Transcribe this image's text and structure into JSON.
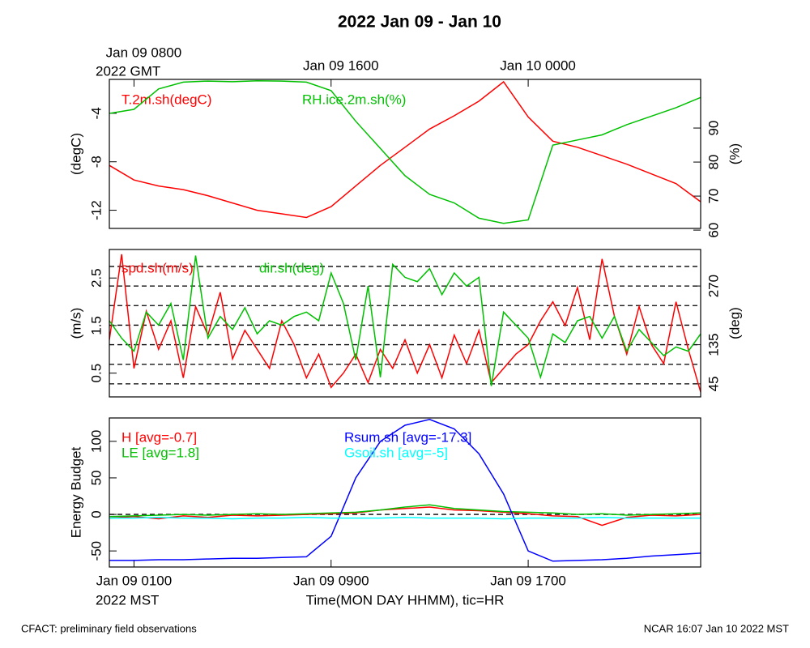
{
  "title": "2022 Jan 09 - Jan 10",
  "footer_left": "CFACT: preliminary field observations",
  "footer_right": "NCAR 16:07 Jan 10 2022 MST",
  "chart_data": [
    {
      "type": "line",
      "ylabel": "(degC)",
      "y2label": "(%)",
      "x": [
        0,
        1,
        2,
        3,
        4,
        5,
        6,
        7,
        8,
        9,
        10,
        11,
        12,
        13,
        14,
        15,
        16,
        17,
        18,
        19,
        20,
        21,
        22,
        23,
        24
      ],
      "xlim": [
        0,
        24
      ],
      "x2ticks": [
        {
          "value": 1,
          "label": "Jan 09 0800"
        },
        {
          "value": 9,
          "label": "Jan 09 1600"
        },
        {
          "value": 17,
          "label": "Jan 10 0000"
        }
      ],
      "x2_note": "2022 GMT",
      "ylim": [
        -13.5,
        -1.2
      ],
      "yticks": [
        -12,
        -8,
        -4
      ],
      "y2lim": [
        60.5,
        104.3
      ],
      "y2ticks": [
        60,
        70,
        80,
        90
      ],
      "series": [
        {
          "name": "T.2m.sh(degC)",
          "color": "#ff0000",
          "values": [
            -8.3,
            -9.5,
            -10.0,
            -10.3,
            -10.8,
            -11.4,
            -12.0,
            -12.3,
            -12.6,
            -11.7,
            -10.0,
            -8.3,
            -6.8,
            -5.3,
            -4.2,
            -3.0,
            -1.4,
            -4.3,
            -6.3,
            -6.8,
            -7.5,
            -8.2,
            -9.0,
            -9.8,
            -11.3
          ]
        },
        {
          "name": "RH.ice.2m.sh(%)",
          "color": "#00c000",
          "axis": "y2",
          "values": [
            94.3,
            95.5,
            101.5,
            103.5,
            103.8,
            103.6,
            103.9,
            103.8,
            103.5,
            101,
            92,
            84,
            76,
            70.5,
            68,
            63.5,
            62,
            63,
            85,
            86.5,
            88,
            91,
            93.5,
            96,
            99
          ]
        }
      ]
    },
    {
      "type": "line",
      "ylabel": "(m/s)",
      "y2label": "(deg)",
      "x": [
        0,
        0.5,
        1,
        1.5,
        2,
        2.5,
        3,
        3.5,
        4,
        4.5,
        5,
        5.5,
        6,
        6.5,
        7,
        7.5,
        8,
        8.5,
        9,
        9.5,
        10,
        10.5,
        11,
        11.5,
        12,
        12.5,
        13,
        13.5,
        14,
        14.5,
        15,
        15.5,
        16,
        16.5,
        17,
        17.5,
        18,
        18.5,
        19,
        19.5,
        20,
        20.5,
        21,
        21.5,
        22,
        22.5,
        23,
        23.5,
        24
      ],
      "xlim": [
        0,
        24
      ],
      "ylim": [
        0,
        3.1
      ],
      "yticks": [
        0.5,
        1.5,
        2.5
      ],
      "y2lim": [
        15,
        354
      ],
      "y2ticks": [
        45,
        135,
        270
      ],
      "y2grid": [
        45,
        90,
        135,
        180,
        225,
        270,
        315
      ],
      "series": [
        {
          "name": "spd.sh(m/s)",
          "color": "#ff0000",
          "values": [
            1.2,
            3.0,
            0.6,
            1.8,
            1.0,
            1.6,
            0.4,
            1.9,
            1.3,
            2.2,
            0.8,
            1.4,
            1.0,
            0.6,
            1.6,
            1.1,
            0.4,
            0.9,
            0.2,
            0.5,
            0.9,
            0.3,
            1.0,
            0.6,
            1.2,
            0.5,
            1.1,
            0.4,
            1.3,
            0.7,
            1.4,
            0.3,
            0.6,
            0.9,
            1.1,
            1.6,
            2.0,
            1.5,
            2.3,
            1.2,
            2.9,
            1.7,
            0.9,
            1.9,
            1.1,
            0.7,
            2.0,
            1.0,
            0.1
          ]
        },
        {
          "name": "dir.sh(deg)",
          "color": "#00c000",
          "axis": "y2",
          "values": [
            190,
            150,
            120,
            210,
            180,
            230,
            100,
            340,
            150,
            200,
            170,
            220,
            160,
            190,
            180,
            200,
            210,
            190,
            300,
            230,
            100,
            270,
            60,
            320,
            290,
            280,
            310,
            250,
            300,
            270,
            290,
            40,
            210,
            180,
            150,
            60,
            160,
            140,
            190,
            200,
            150,
            200,
            120,
            170,
            140,
            110,
            130,
            120,
            160
          ]
        }
      ]
    },
    {
      "type": "line",
      "ylabel": "Energy Budget",
      "xlabel": "Time(MON DAY HHMM), tic=HR",
      "x": [
        0,
        1,
        2,
        3,
        4,
        5,
        6,
        7,
        8,
        9,
        10,
        11,
        12,
        13,
        14,
        15,
        16,
        17,
        18,
        19,
        20,
        21,
        22,
        23,
        24
      ],
      "xlim": [
        0,
        24
      ],
      "xticks": [
        {
          "value": 1,
          "label": "Jan 09 0100"
        },
        {
          "value": 9,
          "label": "Jan 09 0900"
        },
        {
          "value": 17,
          "label": "Jan 09 1700"
        }
      ],
      "x_note": "2022 MST",
      "ylim": [
        -72,
        132
      ],
      "yticks": [
        -50,
        0,
        50,
        100
      ],
      "ygrid": [
        0
      ],
      "series": [
        {
          "name": "H [avg=-0.7]",
          "color": "#ff0000",
          "values": [
            -5,
            -3,
            -6,
            -2,
            -4,
            -1,
            -2,
            -1,
            0,
            1,
            2,
            6,
            8,
            10,
            6,
            5,
            3,
            1,
            -2,
            -3,
            -15,
            -4,
            -1,
            -2,
            0
          ]
        },
        {
          "name": "LE [avg=1.8]",
          "color": "#00c000",
          "values": [
            -3,
            -2,
            -1,
            0,
            -1,
            0,
            1,
            0,
            1,
            2,
            3,
            6,
            10,
            13,
            8,
            6,
            4,
            3,
            2,
            0,
            1,
            -1,
            0,
            1,
            2
          ]
        },
        {
          "name": "Rsum.sh [avg=-17.3]",
          "color": "#0000ff",
          "values": [
            -63,
            -63,
            -62,
            -62,
            -61,
            -60,
            -60,
            -59,
            -58,
            -30,
            50,
            100,
            122,
            130,
            117,
            83,
            28,
            -50,
            -64,
            -63,
            -62,
            -60,
            -57,
            -55,
            -53
          ]
        },
        {
          "name": "Gsoil.sh [avg=-5]",
          "color": "#00ffff",
          "values": [
            -5,
            -5,
            -4,
            -5,
            -5,
            -6,
            -5,
            -5,
            -4,
            -5,
            -5,
            -5,
            -4,
            -5,
            -5,
            -5,
            -6,
            -5,
            -5,
            -5,
            -4,
            -5,
            -5,
            -5,
            -5
          ]
        }
      ]
    }
  ]
}
